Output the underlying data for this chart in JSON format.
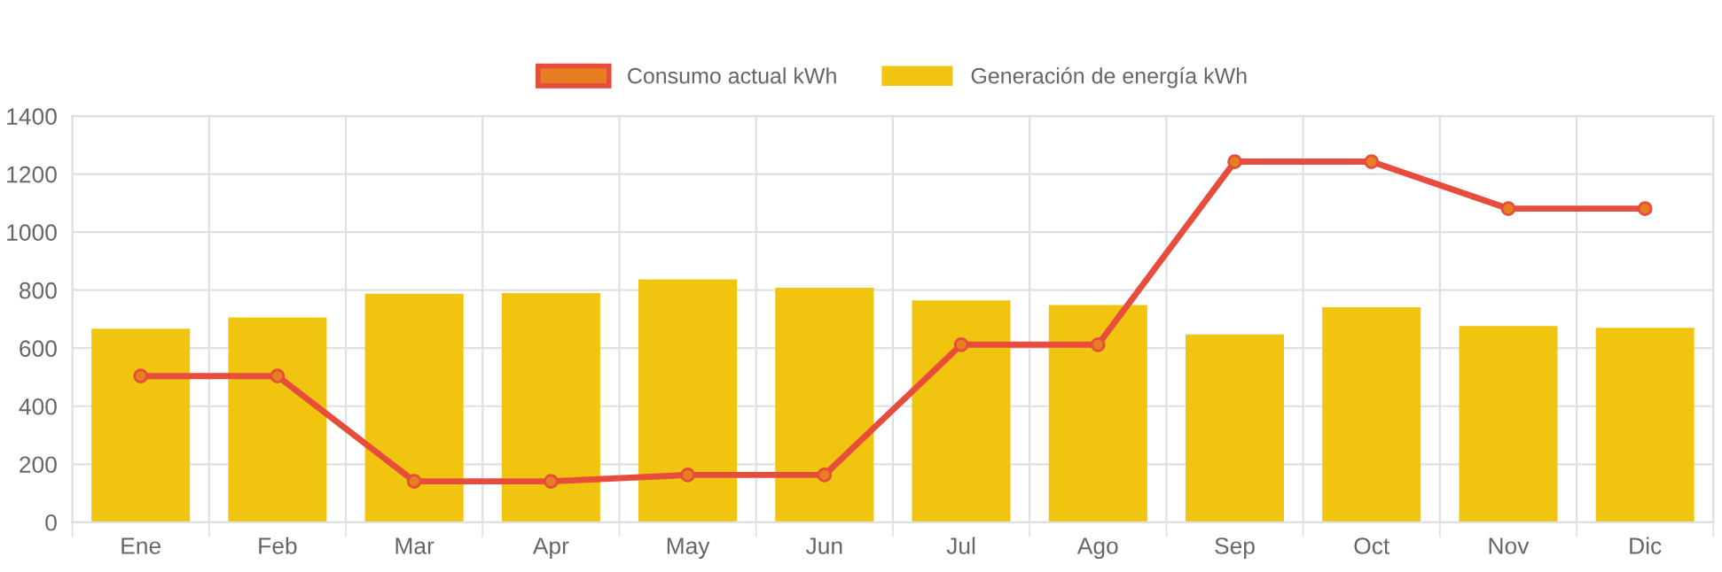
{
  "chart_data": {
    "type": "bar",
    "categories": [
      "Ene",
      "Feb",
      "Mar",
      "Apr",
      "May",
      "Jun",
      "Jul",
      "Ago",
      "Sep",
      "Oct",
      "Nov",
      "Dic"
    ],
    "series": [
      {
        "name": "Consumo actual kWh",
        "type": "line",
        "color": "#e74c3c",
        "marker": "circle",
        "values": [
          504,
          504,
          141,
          141,
          163,
          163,
          612,
          612,
          1243,
          1243,
          1081,
          1081
        ]
      },
      {
        "name": "Generación de energía kWh",
        "color": "#f1c40f",
        "values": [
          667,
          706,
          788,
          790,
          837,
          808,
          765,
          749,
          647,
          741,
          676,
          670
        ]
      }
    ],
    "ylim": [
      0,
      1400
    ],
    "yticks": [
      0,
      200,
      400,
      600,
      800,
      1000,
      1200,
      1400
    ],
    "grid": true,
    "legend": "top"
  }
}
